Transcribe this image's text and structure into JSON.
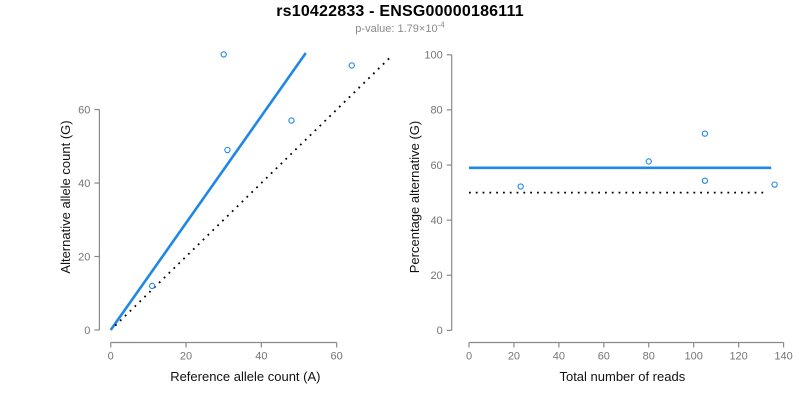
{
  "figure": {
    "title": "rs10422833 - ENSG00000186111",
    "subtitle_prefix": "p-value: 1.79×10",
    "subtitle_exponent": "-4"
  },
  "colors": {
    "accent_blue": "#1F87E5",
    "line_black": "#000000",
    "axis_gray": "#8A8A8A",
    "tick_label_gray": "#757575",
    "axis_title_black": "#111111",
    "title_black": "#000000",
    "subtitle_gray": "#8A8A8A",
    "background": "#FFFFFF"
  },
  "chart_data": [
    {
      "type": "scatter",
      "name": "allele-count-scatter",
      "title": "",
      "xlabel": "Reference allele count (A)",
      "ylabel": "Alternative allele count (G)",
      "xlim": [
        -3,
        74.5
      ],
      "ylim": [
        -3.4,
        75.5
      ],
      "xticks": [
        0,
        20,
        40,
        60
      ],
      "yticks": [
        0,
        20,
        40,
        60
      ],
      "grid": false,
      "legend": false,
      "points": [
        [
          11,
          12
        ],
        [
          30,
          75
        ],
        [
          31,
          49
        ],
        [
          48,
          57
        ],
        [
          64,
          72
        ]
      ],
      "lines": [
        {
          "role": "fit-line",
          "color": "accent_blue",
          "dash": false,
          "x1": 0,
          "y1": 0,
          "x2": 51.8,
          "y2": 75.4
        },
        {
          "role": "identity-line",
          "color": "line_black",
          "dash": true,
          "x1": 1.2,
          "y1": 1.2,
          "x2": 74,
          "y2": 74
        }
      ]
    },
    {
      "type": "scatter",
      "name": "percentage-vs-reads-scatter",
      "title": "",
      "xlabel": "Total number of reads",
      "ylabel": "Percentage alternative (G)",
      "xlim": [
        -7.7,
        144.2
      ],
      "ylim": [
        -4.4,
        100.8
      ],
      "xticks": [
        0,
        20,
        40,
        60,
        80,
        100,
        120,
        140
      ],
      "yticks": [
        0,
        20,
        40,
        60,
        80,
        100
      ],
      "grid": false,
      "legend": false,
      "points": [
        [
          23,
          52.2
        ],
        [
          80,
          61.3
        ],
        [
          105,
          71.4
        ],
        [
          105,
          54.3
        ],
        [
          136,
          52.9
        ]
      ],
      "lines": [
        {
          "role": "mean-percentage-line",
          "color": "accent_blue",
          "dash": false,
          "x1": 0,
          "y1": 59,
          "x2": 134.5,
          "y2": 59
        },
        {
          "role": "expected-50-line",
          "color": "line_black",
          "dash": true,
          "x1": 0,
          "y1": 50,
          "x2": 133,
          "y2": 50
        }
      ]
    }
  ]
}
